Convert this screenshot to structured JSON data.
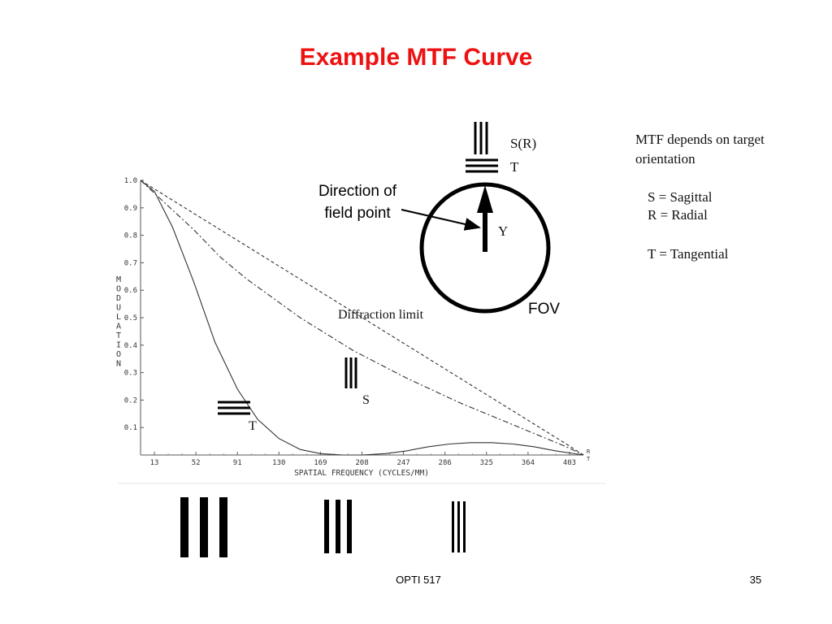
{
  "slide": {
    "title": "Example MTF Curve",
    "footer_center": "OPTI 517",
    "footer_page": "35"
  },
  "side_notes": {
    "heading": "MTF depends on target orientation",
    "lines": [
      "S = Sagittal",
      "R = Radial",
      "T = Tangential"
    ]
  },
  "diagram": {
    "direction_label": [
      "Direction of",
      "field point"
    ],
    "y_label": "Y",
    "fov_label": "FOV",
    "sr_label": "S(R)",
    "t_label": "T"
  },
  "chart_data": {
    "type": "line",
    "xlabel": "SPATIAL FREQUENCY (CYCLES/MM)",
    "ylabel": "MODULATION",
    "xlim": [
      0,
      416
    ],
    "ylim": [
      0,
      1.0
    ],
    "x_ticks": [
      13,
      52,
      91,
      130,
      169,
      208,
      247,
      286,
      325,
      364,
      403
    ],
    "y_ticks": [
      "1.0",
      "0.9",
      "0.8",
      "0.7",
      "0.6",
      "0.5",
      "0.4",
      "0.3",
      "0.2",
      "0.1"
    ],
    "series": [
      {
        "style": "dashed",
        "x": [
          0,
          50,
          100,
          150,
          200,
          250,
          300,
          350,
          400,
          416
        ],
        "y": [
          1.0,
          0.88,
          0.76,
          0.64,
          0.52,
          0.4,
          0.28,
          0.16,
          0.04,
          0.0
        ]
      },
      {
        "style": "dash-dot",
        "x": [
          0,
          25,
          50,
          75,
          100,
          150,
          200,
          250,
          300,
          350,
          400,
          416
        ],
        "y": [
          1.0,
          0.91,
          0.82,
          0.72,
          0.64,
          0.5,
          0.38,
          0.28,
          0.19,
          0.11,
          0.03,
          0.0
        ]
      },
      {
        "style": "solid",
        "x": [
          0,
          13,
          30,
          50,
          70,
          91,
          110,
          130,
          150,
          169,
          190,
          208,
          230,
          250,
          270,
          290,
          310,
          330,
          350,
          370,
          390,
          416
        ],
        "y": [
          1.0,
          0.96,
          0.83,
          0.63,
          0.41,
          0.24,
          0.13,
          0.06,
          0.02,
          0.005,
          0.0,
          0.0,
          0.005,
          0.015,
          0.03,
          0.04,
          0.045,
          0.045,
          0.04,
          0.03,
          0.015,
          0.0
        ]
      }
    ],
    "annotations": [
      {
        "text": "Diffraction limit",
        "target": "dashed"
      },
      {
        "text": "S",
        "target": "dash-dot"
      },
      {
        "text": "T",
        "target": "solid"
      }
    ],
    "end_labels": [
      "R",
      "T"
    ]
  }
}
